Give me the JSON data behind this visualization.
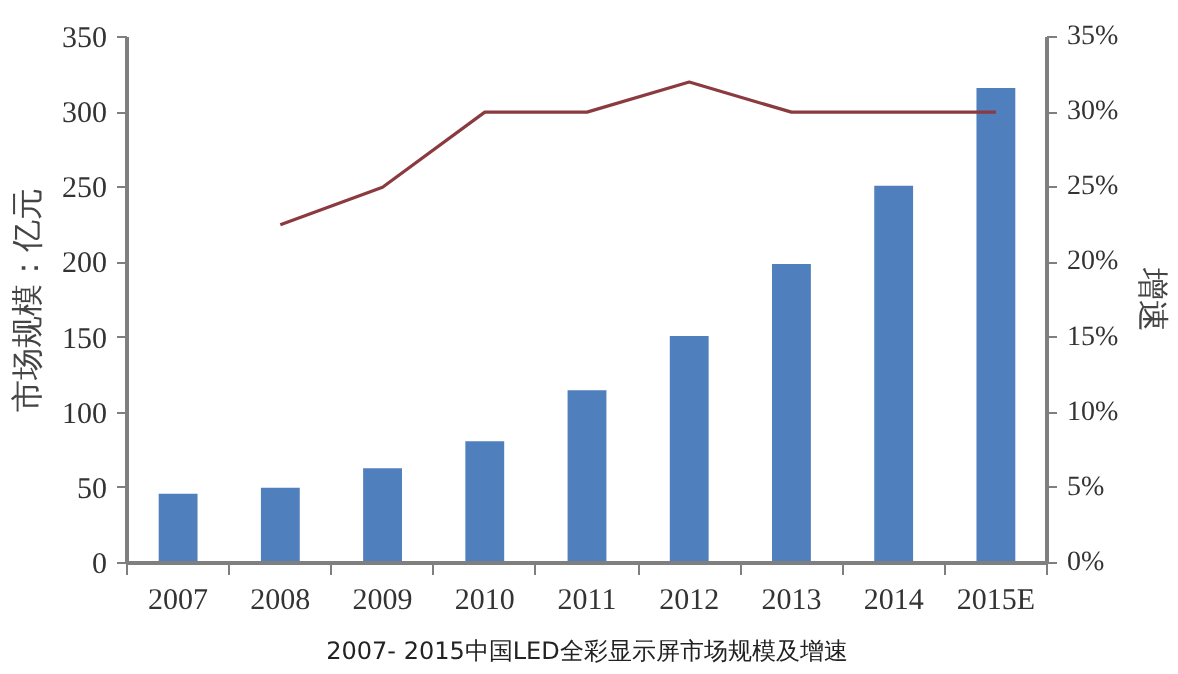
{
  "chart_data": {
    "type": "bar",
    "title": "2007- 2015中国LED全彩显示屏市场规模及增速",
    "ylabel": "市场规模：亿元",
    "y2label": "增速",
    "categories": [
      "2007",
      "2008",
      "2009",
      "2010",
      "2011",
      "2012",
      "2013",
      "2014",
      "2015E"
    ],
    "series": [
      {
        "color": "#4f7fbc",
        "values": [
          46,
          50,
          63,
          81,
          115,
          151,
          199,
          251,
          316
        ]
      },
      {
        "type": "line",
        "axis": "y2",
        "color": "#8b3a3f",
        "values": [
          null,
          22.5,
          25,
          30,
          30,
          32,
          30,
          30,
          30
        ]
      }
    ],
    "ylim": [
      0,
      350
    ],
    "yticks": [
      0,
      50,
      100,
      150,
      200,
      250,
      300,
      350
    ],
    "y2lim": [
      0,
      35
    ],
    "y2ticks": [
      {
        "value": 0,
        "label": "0%"
      },
      {
        "value": 5,
        "label": "5%"
      },
      {
        "value": 10,
        "label": "10%"
      },
      {
        "value": 15,
        "label": "15%"
      },
      {
        "value": 20,
        "label": "20%"
      },
      {
        "value": 25,
        "label": "25%"
      },
      {
        "value": 30,
        "label": "30%"
      },
      {
        "value": 35,
        "label": "35%"
      }
    ],
    "grid": false
  }
}
